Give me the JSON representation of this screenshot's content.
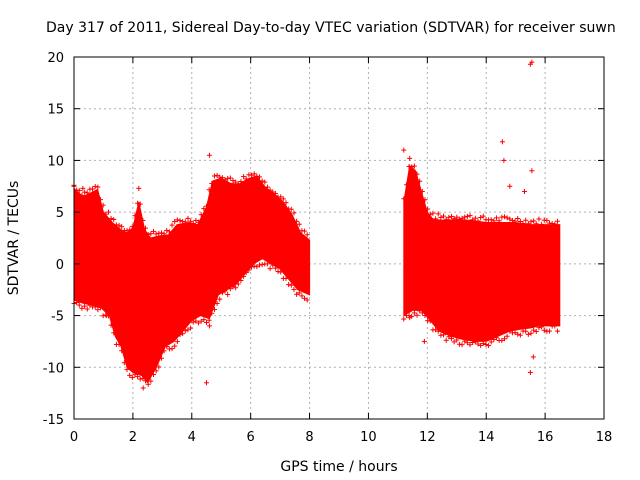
{
  "chart_data": {
    "type": "scatter",
    "title": "Day 317 of 2011, Sidereal Day-to-day VTEC variation (SDTVAR) for receiver suwn",
    "xlabel": "GPS time / hours",
    "ylabel": "SDTVAR / TECUs",
    "xlim": [
      0,
      18
    ],
    "ylim": [
      -15,
      20
    ],
    "xticks": [
      "0",
      "2",
      "4",
      "6",
      "8",
      "10",
      "12",
      "14",
      "16",
      "18"
    ],
    "yticks": [
      "-15",
      "-10",
      "-5",
      "0",
      "5",
      "10",
      "15",
      "20"
    ],
    "grid": true,
    "marker": "+",
    "series": [
      {
        "name": "SDTVAR",
        "color": "#ff0000",
        "upper_envelope": [
          [
            0,
            7.3
          ],
          [
            0.3,
            6.5
          ],
          [
            0.6,
            6.9
          ],
          [
            0.8,
            7.2
          ],
          [
            1.0,
            5.0
          ],
          [
            1.3,
            4.0
          ],
          [
            1.6,
            3.3
          ],
          [
            1.8,
            3.0
          ],
          [
            2.0,
            3.5
          ],
          [
            2.2,
            6.0
          ],
          [
            2.4,
            3.3
          ],
          [
            2.6,
            2.5
          ],
          [
            2.9,
            2.7
          ],
          [
            3.2,
            2.8
          ],
          [
            3.5,
            3.8
          ],
          [
            3.9,
            4.0
          ],
          [
            4.2,
            3.8
          ],
          [
            4.5,
            5.5
          ],
          [
            4.7,
            8.0
          ],
          [
            5.0,
            8.3
          ],
          [
            5.3,
            7.8
          ],
          [
            5.6,
            7.7
          ],
          [
            5.9,
            8.2
          ],
          [
            6.2,
            8.5
          ],
          [
            6.5,
            7.4
          ],
          [
            6.8,
            6.8
          ],
          [
            7.1,
            6.0
          ],
          [
            7.4,
            4.8
          ],
          [
            7.7,
            3.0
          ],
          [
            8.0,
            2.3
          ]
        ],
        "lower_envelope": [
          [
            0,
            -3.5
          ],
          [
            0.3,
            -3.8
          ],
          [
            0.6,
            -4.0
          ],
          [
            0.9,
            -4.2
          ],
          [
            1.2,
            -5.0
          ],
          [
            1.4,
            -7.0
          ],
          [
            1.6,
            -8.0
          ],
          [
            1.8,
            -10.0
          ],
          [
            2.0,
            -10.5
          ],
          [
            2.3,
            -10.8
          ],
          [
            2.5,
            -11.5
          ],
          [
            2.8,
            -10.0
          ],
          [
            3.1,
            -8.0
          ],
          [
            3.4,
            -7.5
          ],
          [
            3.7,
            -6.5
          ],
          [
            4.0,
            -5.5
          ],
          [
            4.3,
            -5.0
          ],
          [
            4.6,
            -5.3
          ],
          [
            4.9,
            -3.0
          ],
          [
            5.2,
            -2.5
          ],
          [
            5.5,
            -2.0
          ],
          [
            5.8,
            -1.0
          ],
          [
            6.1,
            0.0
          ],
          [
            6.4,
            0.5
          ],
          [
            6.7,
            0.0
          ],
          [
            7.0,
            -0.5
          ],
          [
            7.3,
            -1.5
          ],
          [
            7.6,
            -2.5
          ],
          [
            8.0,
            -3.0
          ]
        ],
        "upper_envelope_2": [
          [
            11.2,
            6.0
          ],
          [
            11.4,
            9.5
          ],
          [
            11.6,
            9.0
          ],
          [
            11.8,
            7.0
          ],
          [
            12.0,
            5.0
          ],
          [
            12.2,
            4.3
          ],
          [
            12.6,
            4.2
          ],
          [
            13.0,
            4.3
          ],
          [
            13.5,
            4.2
          ],
          [
            14.0,
            4.0
          ],
          [
            14.5,
            4.0
          ],
          [
            15.0,
            4.0
          ],
          [
            15.5,
            3.8
          ],
          [
            16.0,
            3.8
          ],
          [
            16.5,
            3.8
          ]
        ],
        "lower_envelope_2": [
          [
            11.2,
            -5.0
          ],
          [
            11.5,
            -4.5
          ],
          [
            11.8,
            -4.5
          ],
          [
            12.1,
            -5.5
          ],
          [
            12.4,
            -6.5
          ],
          [
            12.8,
            -7.0
          ],
          [
            13.2,
            -7.3
          ],
          [
            13.6,
            -7.5
          ],
          [
            14.0,
            -7.5
          ],
          [
            14.4,
            -7.0
          ],
          [
            14.8,
            -6.5
          ],
          [
            15.2,
            -6.3
          ],
          [
            15.5,
            -6.2
          ],
          [
            15.8,
            -6.0
          ],
          [
            16.2,
            -6.0
          ],
          [
            16.5,
            -6.0
          ]
        ],
        "outliers": [
          [
            0.0,
            7.5
          ],
          [
            0.3,
            7.3
          ],
          [
            1.1,
            -5.0
          ],
          [
            2.2,
            7.3
          ],
          [
            2.35,
            -12.0
          ],
          [
            4.5,
            -11.5
          ],
          [
            4.6,
            10.5
          ],
          [
            4.6,
            -6.0
          ],
          [
            11.2,
            11.0
          ],
          [
            11.4,
            10.2
          ],
          [
            11.4,
            -5.2
          ],
          [
            11.9,
            -7.5
          ],
          [
            14.55,
            11.8
          ],
          [
            14.6,
            10.0
          ],
          [
            14.8,
            7.5
          ],
          [
            15.3,
            7.0
          ],
          [
            15.5,
            19.3
          ],
          [
            15.55,
            19.5
          ],
          [
            15.5,
            -10.5
          ],
          [
            15.55,
            9.0
          ],
          [
            15.6,
            -9.0
          ]
        ]
      }
    ]
  }
}
